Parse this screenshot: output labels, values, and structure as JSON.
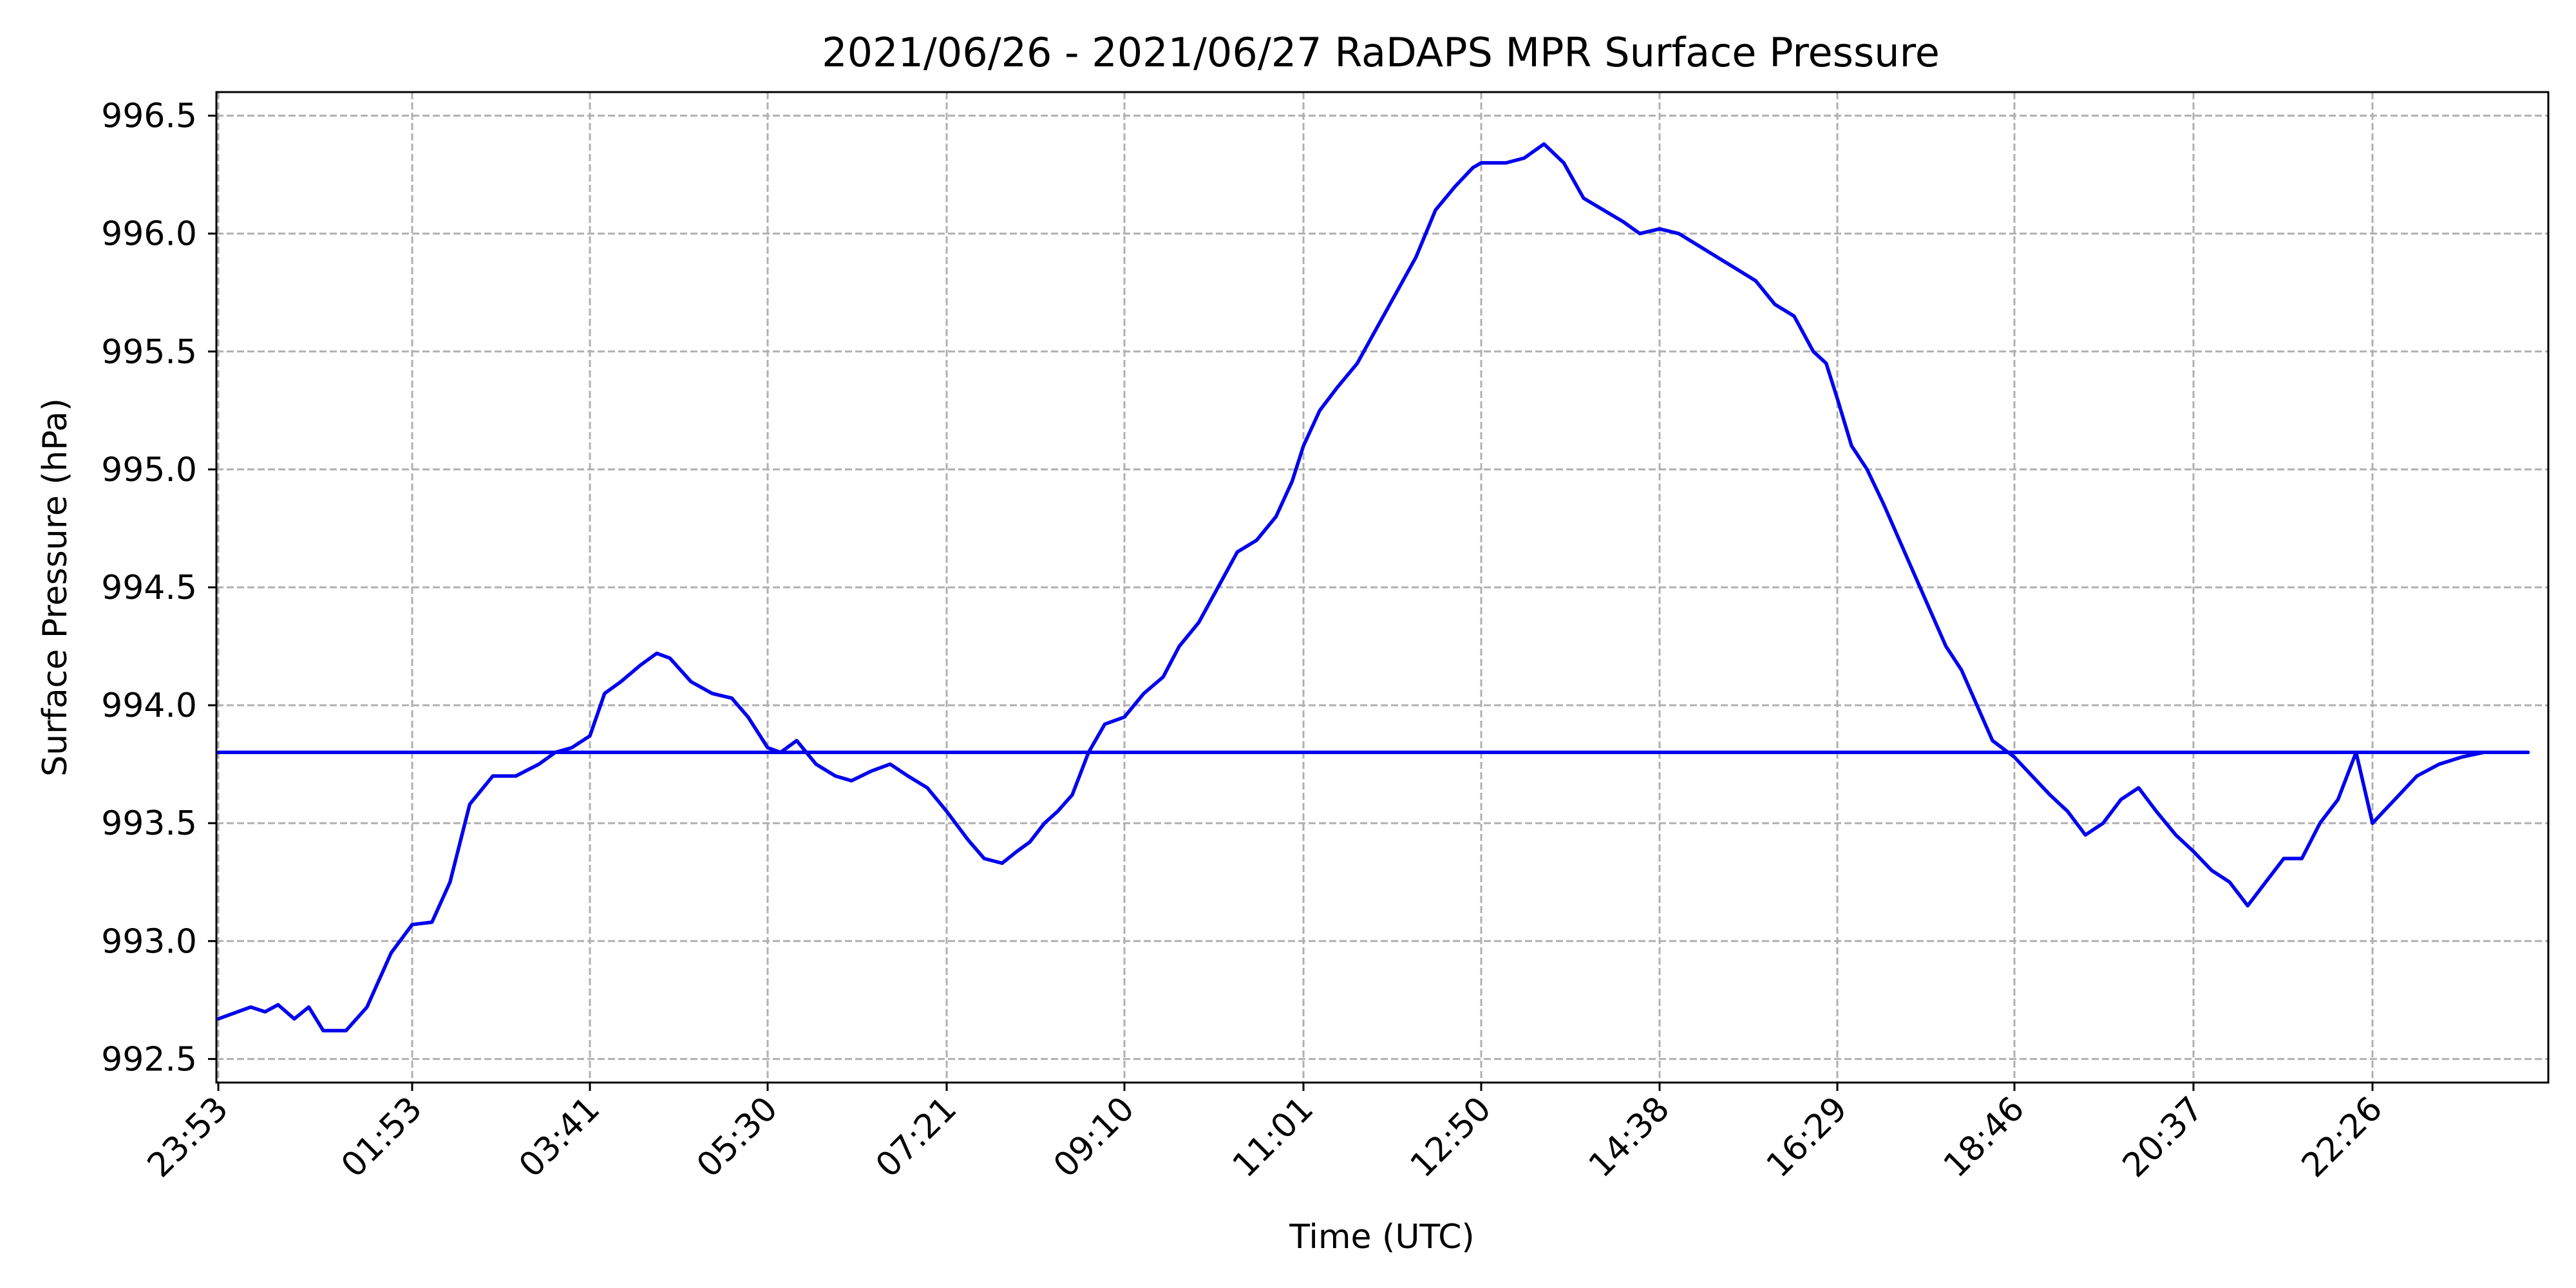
{
  "chart_data": {
    "type": "line",
    "title": "2021/06/26 - 2021/06/27 RaDAPS MPR Surface Pressure",
    "xlabel": "Time (UTC)",
    "ylabel": "Surface Pressure (hPa)",
    "x_ticks": [
      "23:53",
      "01:53",
      "03:41",
      "05:30",
      "07:21",
      "09:10",
      "11:01",
      "12:50",
      "14:38",
      "16:29",
      "18:46",
      "20:37",
      "22:26"
    ],
    "y_ticks": [
      "992.5",
      "993.0",
      "993.5",
      "994.0",
      "994.5",
      "995.0",
      "995.5",
      "996.0",
      "996.5"
    ],
    "ylim": [
      992.4,
      996.6
    ],
    "grid": true,
    "line_color": "#0000ee",
    "series": [
      {
        "x": [
          "23:53",
          "00:13",
          "00:22",
          "00:30",
          "00:40",
          "00:49",
          "00:58",
          "01:12",
          "01:25",
          "01:40",
          "01:53",
          "02:05",
          "02:16",
          "02:28",
          "02:42",
          "02:56",
          "03:10",
          "03:20",
          "03:30",
          "03:41",
          "03:50",
          "04:00",
          "04:12",
          "04:22",
          "04:30",
          "04:43",
          "04:56",
          "05:08",
          "05:18",
          "05:30",
          "05:38",
          "05:48",
          "06:00",
          "06:12",
          "06:22",
          "06:34",
          "06:46",
          "06:57",
          "07:09",
          "07:21",
          "07:34",
          "07:44",
          "07:55",
          "08:04",
          "08:12",
          "08:21",
          "08:29",
          "08:38",
          "08:48",
          "08:58",
          "09:10",
          "09:22",
          "09:34",
          "09:44",
          "09:56",
          "10:08",
          "10:20",
          "10:32",
          "10:44",
          "10:54",
          "11:01",
          "11:11",
          "11:22",
          "11:34",
          "11:46",
          "11:58",
          "12:10",
          "12:22",
          "12:34",
          "12:45",
          "12:50",
          "12:57",
          "13:05",
          "13:16",
          "13:28",
          "13:40",
          "13:52",
          "14:04",
          "14:16",
          "14:26",
          "14:38",
          "14:50",
          "15:02",
          "15:14",
          "15:26",
          "15:38",
          "15:50",
          "16:02",
          "16:14",
          "16:22",
          "16:29",
          "16:40",
          "16:52",
          "17:05",
          "17:17",
          "17:29",
          "17:41",
          "17:53",
          "18:05",
          "18:17",
          "18:29",
          "18:46",
          "18:57",
          "19:08",
          "19:19",
          "19:30",
          "19:41",
          "19:52",
          "20:03",
          "20:14",
          "20:26",
          "20:37",
          "20:48",
          "20:59",
          "21:10",
          "21:21",
          "21:32",
          "21:43",
          "21:54",
          "22:05",
          "22:16",
          "22:26",
          "22:37",
          "22:48",
          "22:59",
          "23:10",
          "23:21",
          "23:32",
          "23:43",
          "23:53"
        ],
        "values": [
          992.67,
          992.72,
          992.7,
          992.73,
          992.67,
          992.72,
          992.62,
          992.62,
          992.72,
          992.95,
          993.07,
          993.08,
          993.25,
          993.58,
          993.7,
          993.7,
          993.75,
          993.8,
          993.82,
          993.87,
          994.05,
          994.1,
          994.17,
          994.22,
          994.2,
          994.1,
          994.05,
          994.03,
          993.95,
          993.82,
          993.8,
          993.85,
          993.75,
          993.7,
          993.68,
          993.72,
          993.75,
          993.7,
          993.65,
          993.55,
          993.43,
          993.35,
          993.33,
          993.38,
          993.42,
          993.5,
          993.55,
          993.62,
          993.8,
          993.92,
          993.95,
          994.05,
          994.12,
          994.25,
          994.35,
          994.5,
          994.65,
          994.7,
          994.8,
          994.95,
          995.1,
          995.25,
          995.35,
          995.45,
          995.6,
          995.75,
          995.9,
          996.1,
          996.2,
          996.28,
          996.3,
          996.3,
          996.3,
          996.32,
          996.38,
          996.3,
          996.15,
          996.1,
          996.05,
          996.0,
          996.02,
          996.0,
          995.95,
          995.9,
          995.85,
          995.8,
          995.7,
          995.65,
          995.5,
          995.45,
          995.3,
          995.1,
          995.0,
          994.85,
          994.7,
          994.55,
          994.4,
          994.25,
          994.15,
          994.0,
          993.85,
          993.78,
          993.7,
          993.62,
          993.55,
          993.45,
          993.5,
          993.6,
          993.65,
          993.55,
          993.45,
          993.38,
          993.3,
          993.25,
          993.15,
          993.25,
          993.35,
          993.35,
          993.5,
          993.6,
          993.8,
          993.5,
          993.6,
          993.7,
          993.75,
          993.78,
          993.8,
          993.8,
          993.8,
          993.8
        ]
      }
    ]
  }
}
